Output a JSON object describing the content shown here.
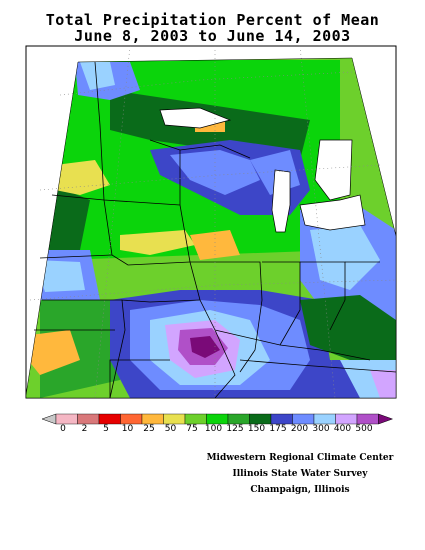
{
  "header": {
    "title_line1": "Total Precipitation Percent of Mean",
    "title_line2": "June 8, 2003 to June 14, 2003"
  },
  "legend": {
    "labels": [
      "0",
      "2",
      "5",
      "10",
      "25",
      "50",
      "75",
      "100",
      "125",
      "150",
      "175",
      "200",
      "300",
      "400",
      "500"
    ],
    "colors": [
      "#c8c8c8",
      "#f5b7c4",
      "#d9787a",
      "#e60000",
      "#ff6633",
      "#ffb83d",
      "#e8e050",
      "#6dd02c",
      "#0bd40b",
      "#2aa62a",
      "#0a6b1a",
      "#3d46c8",
      "#6e8cff",
      "#9ad2ff",
      "#d2a5ff",
      "#b050c8",
      "#7a0a78"
    ]
  },
  "credits": {
    "line1": "Midwestern Regional Climate Center",
    "line2": "Illinois State Water Survey",
    "line3": "Champaign, Illinois"
  }
}
